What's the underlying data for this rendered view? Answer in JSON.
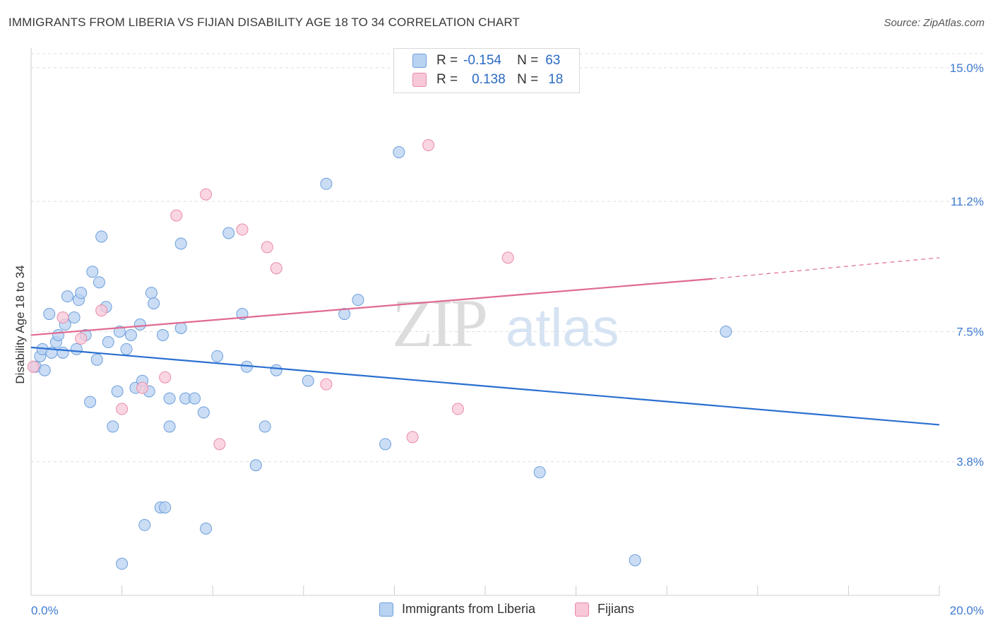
{
  "title": "IMMIGRANTS FROM LIBERIA VS FIJIAN DISABILITY AGE 18 TO 34 CORRELATION CHART",
  "source": "Source: ZipAtlas.com",
  "watermark": {
    "zip": "ZIP",
    "atlas": "atlas"
  },
  "legend": {
    "rows": [
      {
        "r_label": "R =",
        "r_value": "-0.154",
        "n_label": "N =",
        "n_value": "63"
      },
      {
        "r_label": "R =",
        "r_value": "0.138",
        "n_label": "N =",
        "n_value": "18"
      }
    ]
  },
  "bottom_legend": [
    "Immigrants from Liberia",
    "Fijians"
  ],
  "colors": {
    "liberia_fill": "#b8d2f2",
    "liberia_stroke": "#6d9fdc",
    "liberia_line": "#2a6fd0",
    "fiji_fill": "#f8c8d8",
    "fiji_stroke": "#e98aa8",
    "fiji_line": "#e06a92",
    "tick_label": "#3f7bd0",
    "grid": "#dedede"
  },
  "chart_data": {
    "type": "scatter",
    "title": "IMMIGRANTS FROM LIBERIA VS FIJIAN DISABILITY AGE 18 TO 34 CORRELATION CHART",
    "xlabel": "",
    "ylabel": "Disability Age 18 to 34",
    "xlim": [
      0,
      20
    ],
    "ylim": [
      0,
      15.4
    ],
    "x_tick_labels": [
      {
        "value": 0,
        "label": "0.0%"
      },
      {
        "value": 20,
        "label": "20.0%"
      }
    ],
    "y_tick_labels": [
      {
        "value": 3.8,
        "label": "3.8%"
      },
      {
        "value": 7.5,
        "label": "7.5%"
      },
      {
        "value": 11.2,
        "label": "11.2%"
      },
      {
        "value": 15.0,
        "label": "15.0%"
      }
    ],
    "grid": true,
    "legend_position": "top-center",
    "series": [
      {
        "name": "Immigrants from Liberia",
        "points": [
          [
            0.1,
            6.5
          ],
          [
            0.2,
            6.8
          ],
          [
            0.25,
            7.0
          ],
          [
            0.3,
            6.4
          ],
          [
            0.4,
            8.0
          ],
          [
            0.45,
            6.9
          ],
          [
            0.55,
            7.2
          ],
          [
            0.6,
            7.4
          ],
          [
            0.7,
            6.9
          ],
          [
            0.75,
            7.7
          ],
          [
            0.8,
            8.5
          ],
          [
            0.95,
            7.9
          ],
          [
            1.0,
            7.0
          ],
          [
            1.05,
            8.4
          ],
          [
            1.1,
            8.6
          ],
          [
            1.2,
            7.4
          ],
          [
            1.3,
            5.5
          ],
          [
            1.35,
            9.2
          ],
          [
            1.45,
            6.7
          ],
          [
            1.5,
            8.9
          ],
          [
            1.55,
            10.2
          ],
          [
            1.65,
            8.2
          ],
          [
            1.7,
            7.2
          ],
          [
            1.8,
            4.8
          ],
          [
            1.9,
            5.8
          ],
          [
            1.95,
            7.5
          ],
          [
            2.0,
            0.9
          ],
          [
            2.1,
            7.0
          ],
          [
            2.2,
            7.4
          ],
          [
            2.3,
            5.9
          ],
          [
            2.4,
            7.7
          ],
          [
            2.45,
            6.1
          ],
          [
            2.5,
            2.0
          ],
          [
            2.6,
            5.8
          ],
          [
            2.65,
            8.6
          ],
          [
            2.7,
            8.3
          ],
          [
            2.85,
            2.5
          ],
          [
            2.9,
            7.4
          ],
          [
            2.95,
            2.5
          ],
          [
            3.05,
            4.8
          ],
          [
            3.05,
            5.6
          ],
          [
            3.3,
            10.0
          ],
          [
            3.3,
            7.6
          ],
          [
            3.4,
            5.6
          ],
          [
            3.6,
            5.6
          ],
          [
            3.8,
            5.2
          ],
          [
            3.85,
            1.9
          ],
          [
            4.1,
            6.8
          ],
          [
            4.35,
            10.3
          ],
          [
            4.65,
            8.0
          ],
          [
            4.75,
            6.5
          ],
          [
            4.95,
            3.7
          ],
          [
            5.15,
            4.8
          ],
          [
            5.4,
            6.4
          ],
          [
            6.1,
            6.1
          ],
          [
            6.5,
            11.7
          ],
          [
            6.9,
            8.0
          ],
          [
            7.2,
            8.4
          ],
          [
            7.8,
            4.3
          ],
          [
            8.1,
            12.6
          ],
          [
            11.2,
            3.5
          ],
          [
            13.3,
            1.0
          ],
          [
            15.3,
            7.5
          ]
        ]
      },
      {
        "name": "Fijians",
        "points": [
          [
            0.05,
            6.5
          ],
          [
            0.7,
            7.9
          ],
          [
            1.1,
            7.3
          ],
          [
            1.55,
            8.1
          ],
          [
            2.0,
            5.3
          ],
          [
            2.45,
            5.9
          ],
          [
            2.95,
            6.2
          ],
          [
            3.2,
            10.8
          ],
          [
            3.85,
            11.4
          ],
          [
            4.15,
            4.3
          ],
          [
            4.65,
            10.4
          ],
          [
            5.2,
            9.9
          ],
          [
            5.4,
            9.3
          ],
          [
            6.5,
            6.0
          ],
          [
            8.4,
            4.5
          ],
          [
            8.75,
            12.8
          ],
          [
            9.4,
            5.3
          ],
          [
            10.5,
            9.6
          ]
        ]
      }
    ],
    "trend_lines": [
      {
        "name": "Immigrants from Liberia",
        "x": [
          0,
          20
        ],
        "y": [
          7.05,
          4.85
        ]
      },
      {
        "name": "Fijians",
        "x": [
          0,
          15
        ],
        "y": [
          7.4,
          9.0
        ],
        "dashed_extension": {
          "x": [
            15,
            20
          ],
          "y": [
            9.0,
            9.6
          ]
        }
      }
    ]
  }
}
